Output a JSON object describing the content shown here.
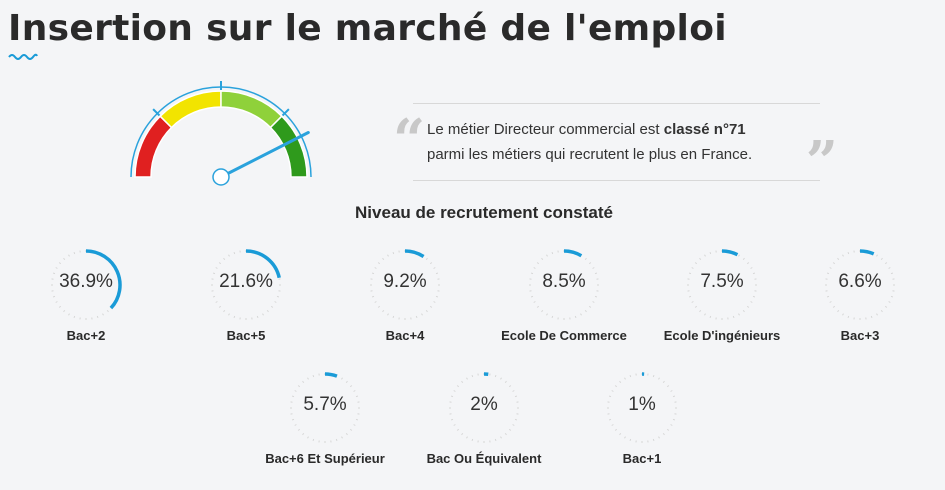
{
  "page": {
    "title": "Insertion sur le marché de l'emploi"
  },
  "gauge": {
    "level": 0.85,
    "zone_colors": [
      "#e02020",
      "#f2e400",
      "#8fd13a",
      "#2f9a1c"
    ],
    "needle_color": "#2aa2dc"
  },
  "quote": {
    "line1_prefix": "Le métier Directeur commercial est ",
    "line1_bold": "classé n°71",
    "line2": "parmi les métiers qui recrutent le plus en France.",
    "open_mark": "“",
    "close_mark": "”"
  },
  "section": {
    "title": "Niveau de recrutement constaté"
  },
  "accent_color": "#1a9bd7",
  "stats": [
    {
      "value": "36.9%",
      "label": "Bac+2",
      "fraction": 0.369
    },
    {
      "value": "21.6%",
      "label": "Bac+5",
      "fraction": 0.216
    },
    {
      "value": "9.2%",
      "label": "Bac+4",
      "fraction": 0.092
    },
    {
      "value": "8.5%",
      "label": "Ecole De Commerce",
      "fraction": 0.085
    },
    {
      "value": "7.5%",
      "label": "Ecole D'ingénieurs",
      "fraction": 0.075
    },
    {
      "value": "6.6%",
      "label": "Bac+3",
      "fraction": 0.066
    },
    {
      "value": "5.7%",
      "label": "Bac+6 Et Supérieur",
      "fraction": 0.057
    },
    {
      "value": "2%",
      "label": "Bac Ou Équivalent",
      "fraction": 0.02
    },
    {
      "value": "1%",
      "label": "Bac+1",
      "fraction": 0.01
    }
  ]
}
